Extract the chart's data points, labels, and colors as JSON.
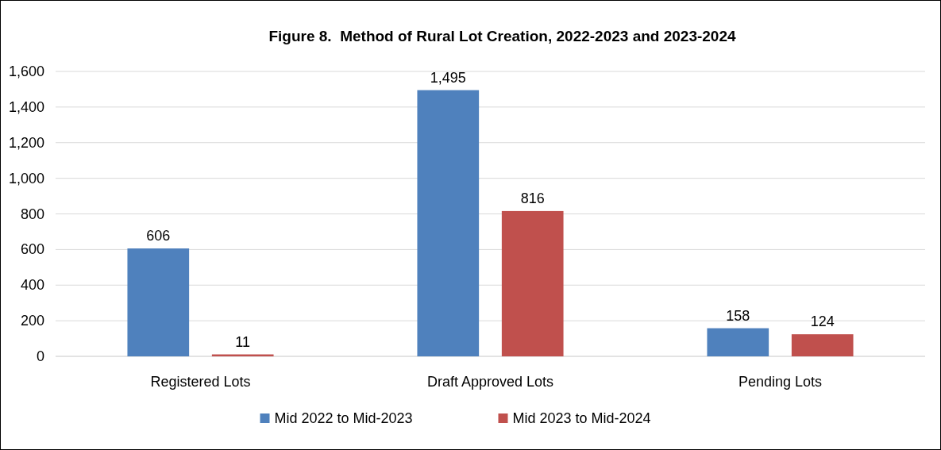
{
  "chart_data": {
    "type": "bar",
    "title": "Figure 8.  Method of Rural Lot Creation, 2022-2023 and 2023-2024",
    "categories": [
      "Registered Lots",
      "Draft Approved Lots",
      "Pending Lots"
    ],
    "series": [
      {
        "name": "Mid 2022 to Mid-2023",
        "color": "#4f81bd",
        "values": [
          606,
          1495,
          158
        ],
        "value_labels": [
          "606",
          "1,495",
          "158"
        ]
      },
      {
        "name": "Mid 2023 to Mid-2024",
        "color": "#c0504d",
        "values": [
          11,
          816,
          124
        ],
        "value_labels": [
          "11",
          "816",
          "124"
        ]
      }
    ],
    "ylim": [
      0,
      1600
    ],
    "yticks": [
      {
        "value": 0,
        "label": "0"
      },
      {
        "value": 200,
        "label": "200"
      },
      {
        "value": 400,
        "label": "400"
      },
      {
        "value": 600,
        "label": "600"
      },
      {
        "value": 800,
        "label": "800"
      },
      {
        "value": 1000,
        "label": "1,000"
      },
      {
        "value": 1200,
        "label": "1,200"
      },
      {
        "value": 1400,
        "label": "1,400"
      },
      {
        "value": 1600,
        "label": "1,600"
      }
    ],
    "grid": "y",
    "legend": "bottom"
  }
}
